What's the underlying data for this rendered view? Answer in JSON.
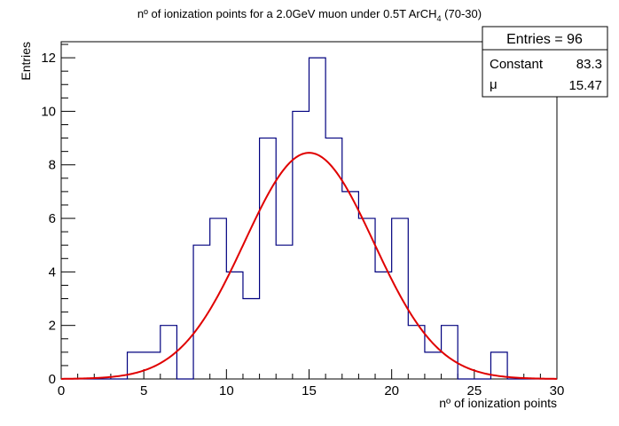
{
  "chart_data": {
    "type": "bar",
    "title": {
      "main": "nº of ionization points for a 2.0GeV muon under 0.5T ArCH",
      "subscript": "4",
      "suffix": " (70-30)"
    },
    "xlabel": "nº of ionization points",
    "ylabel": "Entries",
    "xlim": [
      0,
      30
    ],
    "ylim": [
      0,
      12.6
    ],
    "x_ticks": [
      0,
      5,
      10,
      15,
      20,
      25,
      30
    ],
    "y_ticks": [
      0,
      2,
      4,
      6,
      8,
      10,
      12
    ],
    "bin_width": 1,
    "bins_start": 0,
    "counts": [
      0,
      0,
      0,
      0,
      1,
      1,
      2,
      0,
      5,
      6,
      4,
      3,
      9,
      5,
      10,
      12,
      9,
      7,
      6,
      4,
      6,
      2,
      1,
      2,
      0,
      0,
      1,
      0,
      0,
      0
    ],
    "hist_color": "#00007f",
    "fit": {
      "type": "gaussian",
      "constant": 83.3,
      "mean": 15.47,
      "peak_height": 8.45,
      "peak_x": 15.0,
      "sigma": 3.9,
      "color": "#e00000"
    },
    "stats_box": {
      "entries_label": "Entries = 96",
      "rows": [
        {
          "label": "Constant",
          "value": "83.3"
        },
        {
          "label": "μ",
          "value": "15.47"
        }
      ]
    }
  }
}
